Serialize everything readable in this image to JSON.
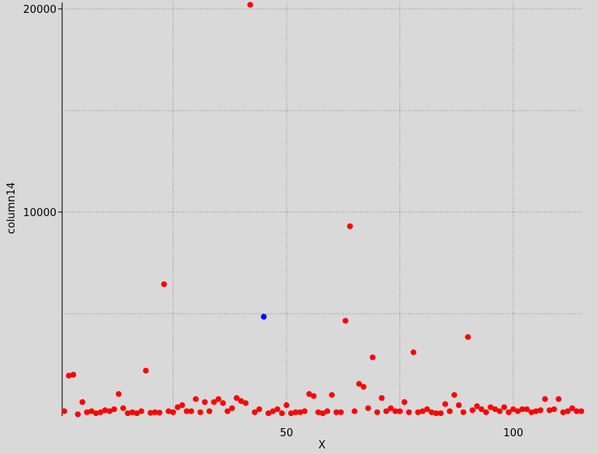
{
  "chart_data": {
    "type": "scatter",
    "title": "",
    "xlabel": "X",
    "ylabel": "column14",
    "xlim": [
      0,
      115
    ],
    "ylim": [
      0,
      20200
    ],
    "x_ticks": [
      50,
      100
    ],
    "x_tick_labels": [
      "50",
      "100"
    ],
    "x_grid": [
      25,
      50,
      75,
      100
    ],
    "y_ticks": [
      10000,
      20000
    ],
    "y_tick_labels": [
      "10000",
      "20000"
    ],
    "y_grid": [
      5000,
      10000,
      15000,
      20000
    ],
    "grid": true,
    "colors": {
      "normal": "#ff0000",
      "highlight": "#0000ff",
      "background": "#d9d9d9"
    },
    "series": [
      {
        "color": "#ff0000",
        "x": [
          1,
          2,
          3,
          4,
          5,
          6,
          7,
          8,
          9,
          10,
          11,
          12,
          13,
          14,
          15,
          16,
          17,
          18,
          19,
          20,
          21,
          22,
          23,
          24,
          25,
          26,
          27,
          28,
          29,
          30,
          31,
          32,
          33,
          34,
          35,
          36,
          37,
          38,
          39,
          40,
          41,
          42,
          43,
          44,
          46,
          47,
          48,
          49,
          50,
          51,
          52,
          53,
          54,
          55,
          56,
          57,
          58,
          59,
          60,
          61,
          62,
          63,
          64,
          65,
          66,
          67,
          68,
          69,
          70,
          71,
          72,
          73,
          74,
          75,
          76,
          77,
          78,
          79,
          80,
          81,
          82,
          83,
          84,
          85,
          86,
          87,
          88,
          89,
          90,
          91,
          92,
          93,
          94,
          95,
          96,
          97,
          98,
          99,
          100,
          101,
          102,
          103,
          104,
          105,
          106,
          107,
          108,
          109,
          110,
          111,
          112,
          113,
          114,
          115
        ],
        "y": [
          200,
          1950,
          2000,
          50,
          650,
          150,
          200,
          100,
          150,
          250,
          200,
          300,
          1050,
          350,
          100,
          150,
          100,
          200,
          2200,
          120,
          150,
          130,
          6450,
          200,
          150,
          400,
          500,
          200,
          200,
          800,
          150,
          650,
          200,
          650,
          800,
          600,
          200,
          350,
          850,
          700,
          600,
          20200,
          150,
          300,
          100,
          200,
          300,
          100,
          500,
          100,
          150,
          150,
          200,
          1050,
          950,
          150,
          100,
          200,
          1000,
          150,
          150,
          4650,
          9300,
          200,
          1550,
          1400,
          350,
          2850,
          150,
          850,
          200,
          350,
          200,
          200,
          650,
          150,
          3100,
          150,
          200,
          300,
          150,
          100,
          100,
          550,
          200,
          1000,
          500,
          150,
          3850,
          250,
          450,
          300,
          150,
          400,
          300,
          200,
          400,
          150,
          300,
          200,
          300,
          300,
          150,
          200,
          250,
          800,
          250,
          300,
          800,
          150,
          200,
          350,
          200,
          200
        ]
      },
      {
        "color": "#0000ff",
        "x": [
          45
        ],
        "y": [
          4850
        ]
      }
    ]
  }
}
